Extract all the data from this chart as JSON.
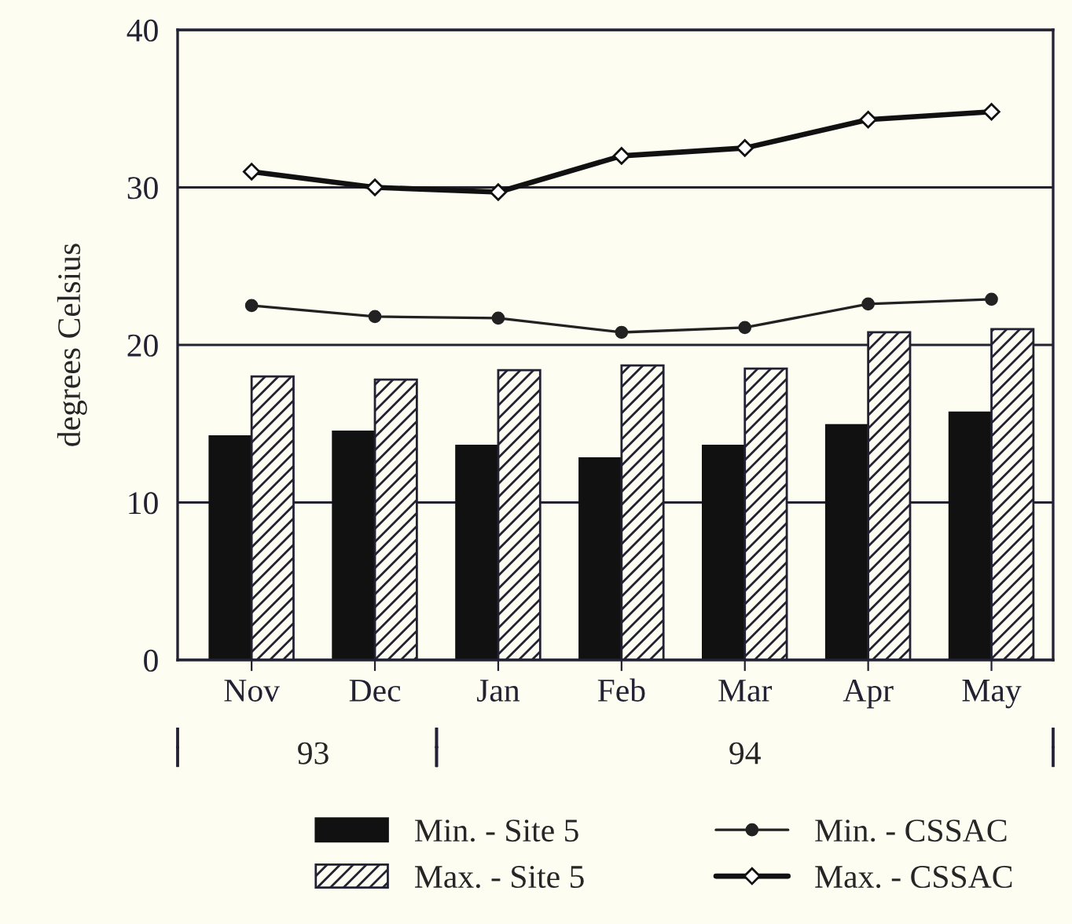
{
  "chart_data": {
    "type": "bar",
    "ylabel": "degrees Celsius",
    "categories": [
      "Nov",
      "Dec",
      "Jan",
      "Feb",
      "Mar",
      "Apr",
      "May"
    ],
    "series": [
      {
        "name": "Min. - Site 5",
        "color": "#111111",
        "values": [
          14.2,
          14.5,
          13.6,
          12.8,
          13.6,
          14.9,
          15.7
        ]
      },
      {
        "name": "Max. - Site 5",
        "color": "#222233",
        "values": [
          18.0,
          17.8,
          18.4,
          18.7,
          18.5,
          20.8,
          21.0
        ]
      },
      {
        "name": "Min. - CSSAC",
        "type": "line",
        "color": "#222222",
        "marker": "circle",
        "values": [
          22.5,
          21.8,
          21.7,
          20.8,
          21.1,
          22.6,
          22.9
        ]
      },
      {
        "name": "Max. - CSSAC",
        "type": "line",
        "color": "#111111",
        "marker": "diamond",
        "values": [
          31.0,
          30.0,
          29.7,
          32.0,
          32.5,
          34.3,
          34.8
        ]
      }
    ],
    "ylim": [
      0,
      40
    ],
    "yticks": [
      0,
      10,
      20,
      30,
      40
    ],
    "grid": "y",
    "legend": "bottom",
    "annotations": [
      "93",
      "94"
    ]
  }
}
